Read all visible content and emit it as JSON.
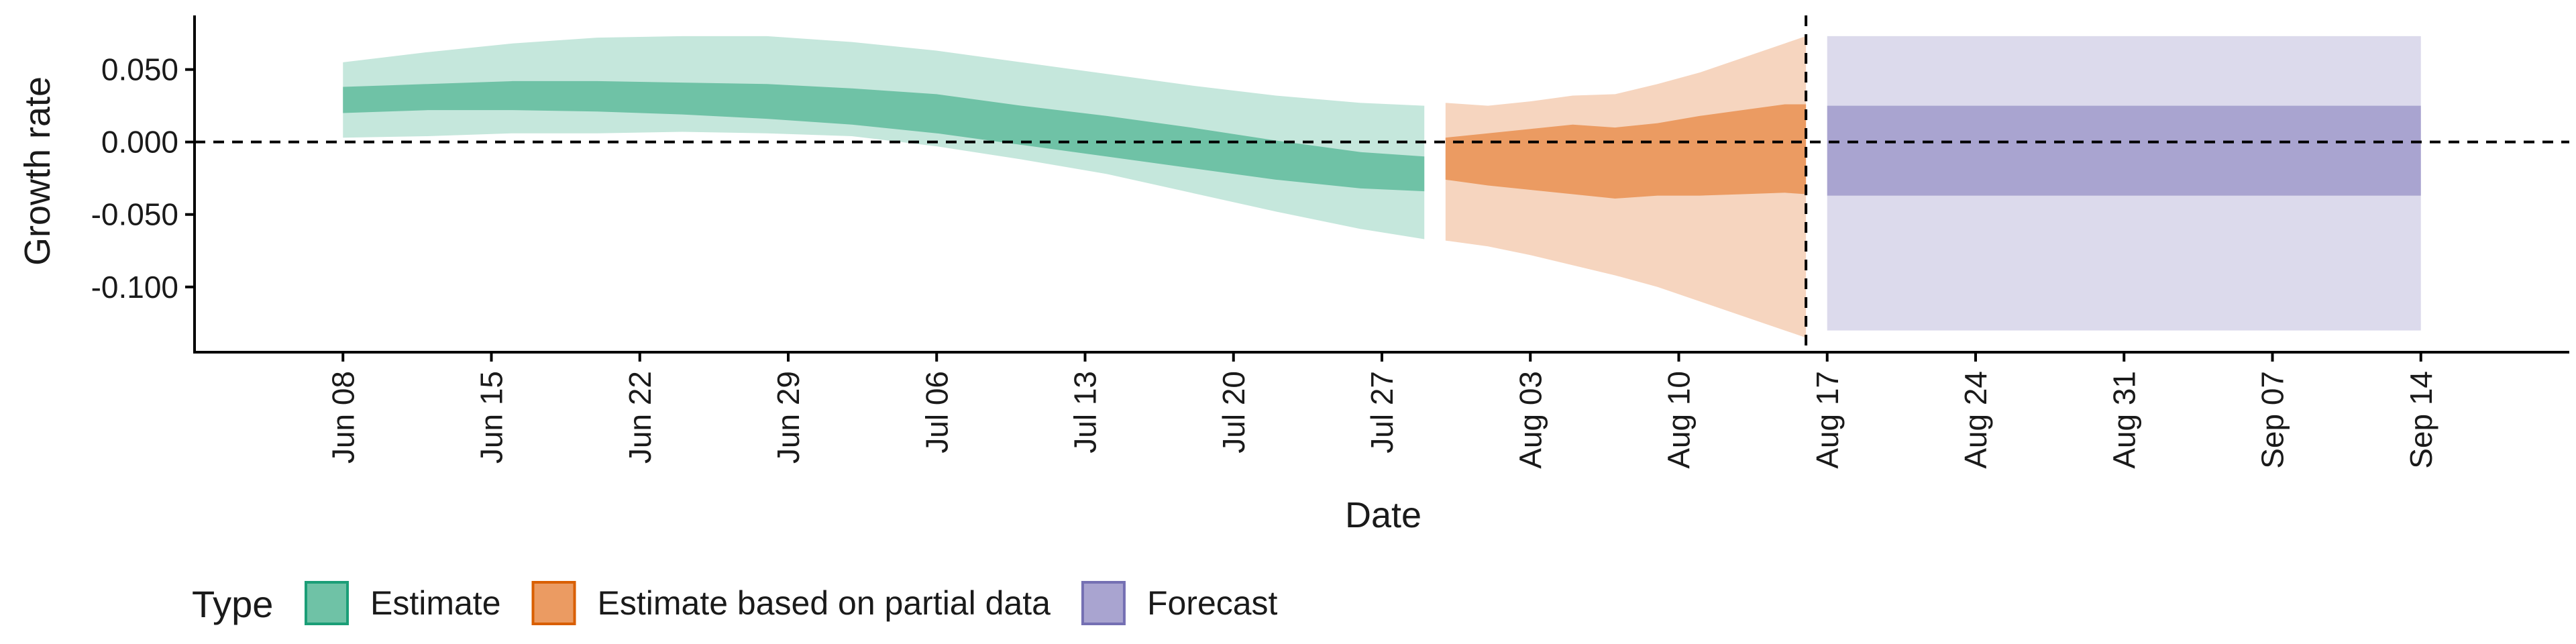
{
  "chart_data": {
    "type": "area",
    "xlabel": "Date",
    "ylabel": "Growth rate",
    "x_range": [
      "2020-06-01",
      "2020-09-21"
    ],
    "ylim": [
      -0.145,
      0.085
    ],
    "y_ticks": [
      {
        "value": 0.05,
        "label": "0.050"
      },
      {
        "value": 0.0,
        "label": "0.000"
      },
      {
        "value": -0.05,
        "label": "-0.050"
      },
      {
        "value": -0.1,
        "label": "-0.100"
      }
    ],
    "x_ticks": [
      {
        "date": "2020-06-08",
        "label": "Jun 08"
      },
      {
        "date": "2020-06-15",
        "label": "Jun 15"
      },
      {
        "date": "2020-06-22",
        "label": "Jun 22"
      },
      {
        "date": "2020-06-29",
        "label": "Jun 29"
      },
      {
        "date": "2020-07-06",
        "label": "Jul 06"
      },
      {
        "date": "2020-07-13",
        "label": "Jul 13"
      },
      {
        "date": "2020-07-20",
        "label": "Jul 20"
      },
      {
        "date": "2020-07-27",
        "label": "Jul 27"
      },
      {
        "date": "2020-08-03",
        "label": "Aug 03"
      },
      {
        "date": "2020-08-10",
        "label": "Aug 10"
      },
      {
        "date": "2020-08-17",
        "label": "Aug 17"
      },
      {
        "date": "2020-08-24",
        "label": "Aug 24"
      },
      {
        "date": "2020-08-31",
        "label": "Aug 31"
      },
      {
        "date": "2020-09-07",
        "label": "Sep 07"
      },
      {
        "date": "2020-09-14",
        "label": "Sep 14"
      }
    ],
    "reference_lines": {
      "horizontal_y": 0.0,
      "vertical_date": "2020-08-16",
      "style": "dashed"
    },
    "grid": false,
    "legend": {
      "title": "Type",
      "placement": "bottom-left",
      "entries": [
        {
          "label": "Estimate",
          "fill": "#6fc2a6",
          "stroke": "#1b9e77"
        },
        {
          "label": "Estimate based on partial data",
          "fill": "#eb9b62",
          "stroke": "#d95f02"
        },
        {
          "label": "Forecast",
          "fill": "#a9a4d0",
          "stroke": "#7570b3"
        }
      ]
    },
    "series": [
      {
        "name": "Estimate",
        "outer_color": "#c5e7dc",
        "inner_color": "#6fc2a6",
        "x": [
          "2020-06-08",
          "2020-06-12",
          "2020-06-16",
          "2020-06-20",
          "2020-06-24",
          "2020-06-28",
          "2020-07-02",
          "2020-07-06",
          "2020-07-10",
          "2020-07-14",
          "2020-07-18",
          "2020-07-22",
          "2020-07-26",
          "2020-07-29"
        ],
        "outer_upper": [
          0.055,
          0.062,
          0.068,
          0.072,
          0.073,
          0.073,
          0.069,
          0.063,
          0.055,
          0.047,
          0.039,
          0.032,
          0.027,
          0.025
        ],
        "inner_upper": [
          0.038,
          0.04,
          0.042,
          0.042,
          0.041,
          0.04,
          0.037,
          0.033,
          0.025,
          0.018,
          0.01,
          0.001,
          -0.007,
          -0.01
        ],
        "inner_lower": [
          0.02,
          0.022,
          0.022,
          0.021,
          0.019,
          0.016,
          0.012,
          0.006,
          -0.002,
          -0.01,
          -0.018,
          -0.026,
          -0.032,
          -0.034
        ],
        "outer_lower": [
          0.003,
          0.004,
          0.006,
          0.006,
          0.007,
          0.006,
          0.004,
          -0.003,
          -0.012,
          -0.022,
          -0.035,
          -0.048,
          -0.06,
          -0.067
        ]
      },
      {
        "name": "Estimate based on partial data",
        "outer_color": "#f6d5bf",
        "inner_color": "#eb9b62",
        "x": [
          "2020-07-30",
          "2020-08-01",
          "2020-08-03",
          "2020-08-05",
          "2020-08-07",
          "2020-08-09",
          "2020-08-11",
          "2020-08-13",
          "2020-08-15",
          "2020-08-16"
        ],
        "outer_upper": [
          0.027,
          0.025,
          0.028,
          0.032,
          0.033,
          0.04,
          0.048,
          0.058,
          0.068,
          0.073
        ],
        "inner_upper": [
          0.003,
          0.006,
          0.009,
          0.012,
          0.01,
          0.013,
          0.018,
          0.022,
          0.026,
          0.026
        ],
        "inner_lower": [
          -0.026,
          -0.03,
          -0.033,
          -0.036,
          -0.039,
          -0.037,
          -0.037,
          -0.036,
          -0.035,
          -0.036
        ],
        "outer_lower": [
          -0.068,
          -0.072,
          -0.078,
          -0.085,
          -0.092,
          -0.1,
          -0.11,
          -0.12,
          -0.13,
          -0.135
        ]
      },
      {
        "name": "Forecast",
        "outer_color": "#dcdaec",
        "inner_color": "#a9a4d0",
        "x": [
          "2020-08-17",
          "2020-09-14"
        ],
        "outer_upper": [
          0.073,
          0.073
        ],
        "inner_upper": [
          0.025,
          0.025
        ],
        "inner_lower": [
          -0.037,
          -0.037
        ],
        "outer_lower": [
          -0.13,
          -0.13
        ]
      }
    ]
  }
}
